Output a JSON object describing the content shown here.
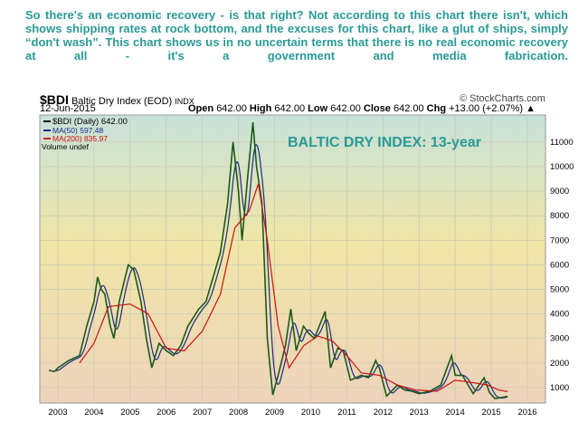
{
  "caption": "So there's an economic recovery - is that right? Not according to this chart there isn't, which shows shipping rates at rock bottom, and the excuses for this chart, like a glut of ships, simply “don't wash”. This chart shows us in no uncertain terms that there is no real economic recovery at all - it's a government and media fabrication.",
  "header": {
    "symbol": "$BDI",
    "name": "Baltic Dry Index (EOD)",
    "exchange": "INDX",
    "copyright": "© StockCharts.com",
    "date": "12-Jun-2015",
    "open_label": "Open",
    "open": "642.00",
    "high_label": "High",
    "high": "642.00",
    "low_label": "Low",
    "low": "642.00",
    "close_label": "Close",
    "close": "642.00",
    "chg_label": "Chg",
    "chg": "+13.00 (+2.07%)"
  },
  "legend": {
    "bdi": "$BDI (Daily) 642.00",
    "ma50": "MA(50) 597.48",
    "ma200": "MA(200) 835.97",
    "volume": "Volume undef"
  },
  "colors": {
    "bdi": "#1a5a1a",
    "ma50": "#1a2a8a",
    "ma200": "#cc1111",
    "title": "#2a9a96"
  },
  "chart_data": {
    "type": "line",
    "title": "BALTIC DRY INDEX: 13-year",
    "xlim": [
      2002.5,
      2016.5
    ],
    "ylim": [
      370,
      12100
    ],
    "x_ticks": [
      2003,
      2004,
      2005,
      2006,
      2007,
      2008,
      2009,
      2010,
      2011,
      2012,
      2013,
      2014,
      2015,
      2016
    ],
    "y_ticks": [
      1000,
      2000,
      3000,
      4000,
      5000,
      6000,
      7000,
      8000,
      9000,
      10000,
      11000
    ],
    "series": [
      {
        "name": "$BDI",
        "points": [
          [
            2002.75,
            1700
          ],
          [
            2002.9,
            1650
          ],
          [
            2003.0,
            1800
          ],
          [
            2003.3,
            2100
          ],
          [
            2003.6,
            2300
          ],
          [
            2003.8,
            3500
          ],
          [
            2004.0,
            4500
          ],
          [
            2004.1,
            5500
          ],
          [
            2004.2,
            5000
          ],
          [
            2004.3,
            4800
          ],
          [
            2004.45,
            3500
          ],
          [
            2004.55,
            3000
          ],
          [
            2004.7,
            4500
          ],
          [
            2004.95,
            6000
          ],
          [
            2005.1,
            5800
          ],
          [
            2005.3,
            4500
          ],
          [
            2005.45,
            3000
          ],
          [
            2005.6,
            1800
          ],
          [
            2005.8,
            2800
          ],
          [
            2006.0,
            2500
          ],
          [
            2006.2,
            2300
          ],
          [
            2006.4,
            2700
          ],
          [
            2006.6,
            3500
          ],
          [
            2006.9,
            4200
          ],
          [
            2007.1,
            4500
          ],
          [
            2007.3,
            5500
          ],
          [
            2007.5,
            6500
          ],
          [
            2007.7,
            8500
          ],
          [
            2007.85,
            11000
          ],
          [
            2008.0,
            9000
          ],
          [
            2008.1,
            7000
          ],
          [
            2008.25,
            9500
          ],
          [
            2008.4,
            11800
          ],
          [
            2008.5,
            10000
          ],
          [
            2008.65,
            8500
          ],
          [
            2008.8,
            3000
          ],
          [
            2008.95,
            700
          ],
          [
            2009.1,
            1500
          ],
          [
            2009.3,
            2700
          ],
          [
            2009.45,
            4200
          ],
          [
            2009.6,
            2500
          ],
          [
            2009.8,
            3500
          ],
          [
            2009.95,
            3200
          ],
          [
            2010.1,
            3000
          ],
          [
            2010.4,
            4100
          ],
          [
            2010.55,
            1800
          ],
          [
            2010.75,
            2600
          ],
          [
            2010.9,
            2500
          ],
          [
            2011.1,
            1300
          ],
          [
            2011.4,
            1500
          ],
          [
            2011.6,
            1400
          ],
          [
            2011.8,
            2100
          ],
          [
            2011.9,
            1800
          ],
          [
            2012.1,
            650
          ],
          [
            2012.4,
            1100
          ],
          [
            2012.6,
            900
          ],
          [
            2012.8,
            850
          ],
          [
            2013.0,
            750
          ],
          [
            2013.3,
            850
          ],
          [
            2013.6,
            1100
          ],
          [
            2013.9,
            2300
          ],
          [
            2014.0,
            1500
          ],
          [
            2014.2,
            1500
          ],
          [
            2014.5,
            750
          ],
          [
            2014.8,
            1400
          ],
          [
            2014.95,
            800
          ],
          [
            2015.1,
            550
          ],
          [
            2015.3,
            600
          ],
          [
            2015.45,
            642
          ]
        ]
      },
      {
        "name": "MA(200)",
        "points": [
          [
            2003.6,
            2000
          ],
          [
            2004.0,
            2800
          ],
          [
            2004.4,
            4300
          ],
          [
            2005.0,
            4400
          ],
          [
            2005.5,
            4000
          ],
          [
            2006.0,
            2600
          ],
          [
            2006.5,
            2500
          ],
          [
            2007.0,
            3300
          ],
          [
            2007.5,
            4800
          ],
          [
            2007.9,
            7500
          ],
          [
            2008.3,
            8200
          ],
          [
            2008.55,
            9300
          ],
          [
            2008.8,
            7000
          ],
          [
            2009.1,
            3500
          ],
          [
            2009.4,
            1800
          ],
          [
            2009.8,
            2700
          ],
          [
            2010.2,
            3100
          ],
          [
            2010.6,
            2900
          ],
          [
            2011.0,
            2300
          ],
          [
            2011.4,
            1600
          ],
          [
            2011.9,
            1500
          ],
          [
            2012.4,
            1100
          ],
          [
            2012.9,
            900
          ],
          [
            2013.5,
            850
          ],
          [
            2014.0,
            1300
          ],
          [
            2014.5,
            1200
          ],
          [
            2014.9,
            1100
          ],
          [
            2015.2,
            900
          ],
          [
            2015.45,
            836
          ]
        ]
      }
    ]
  }
}
